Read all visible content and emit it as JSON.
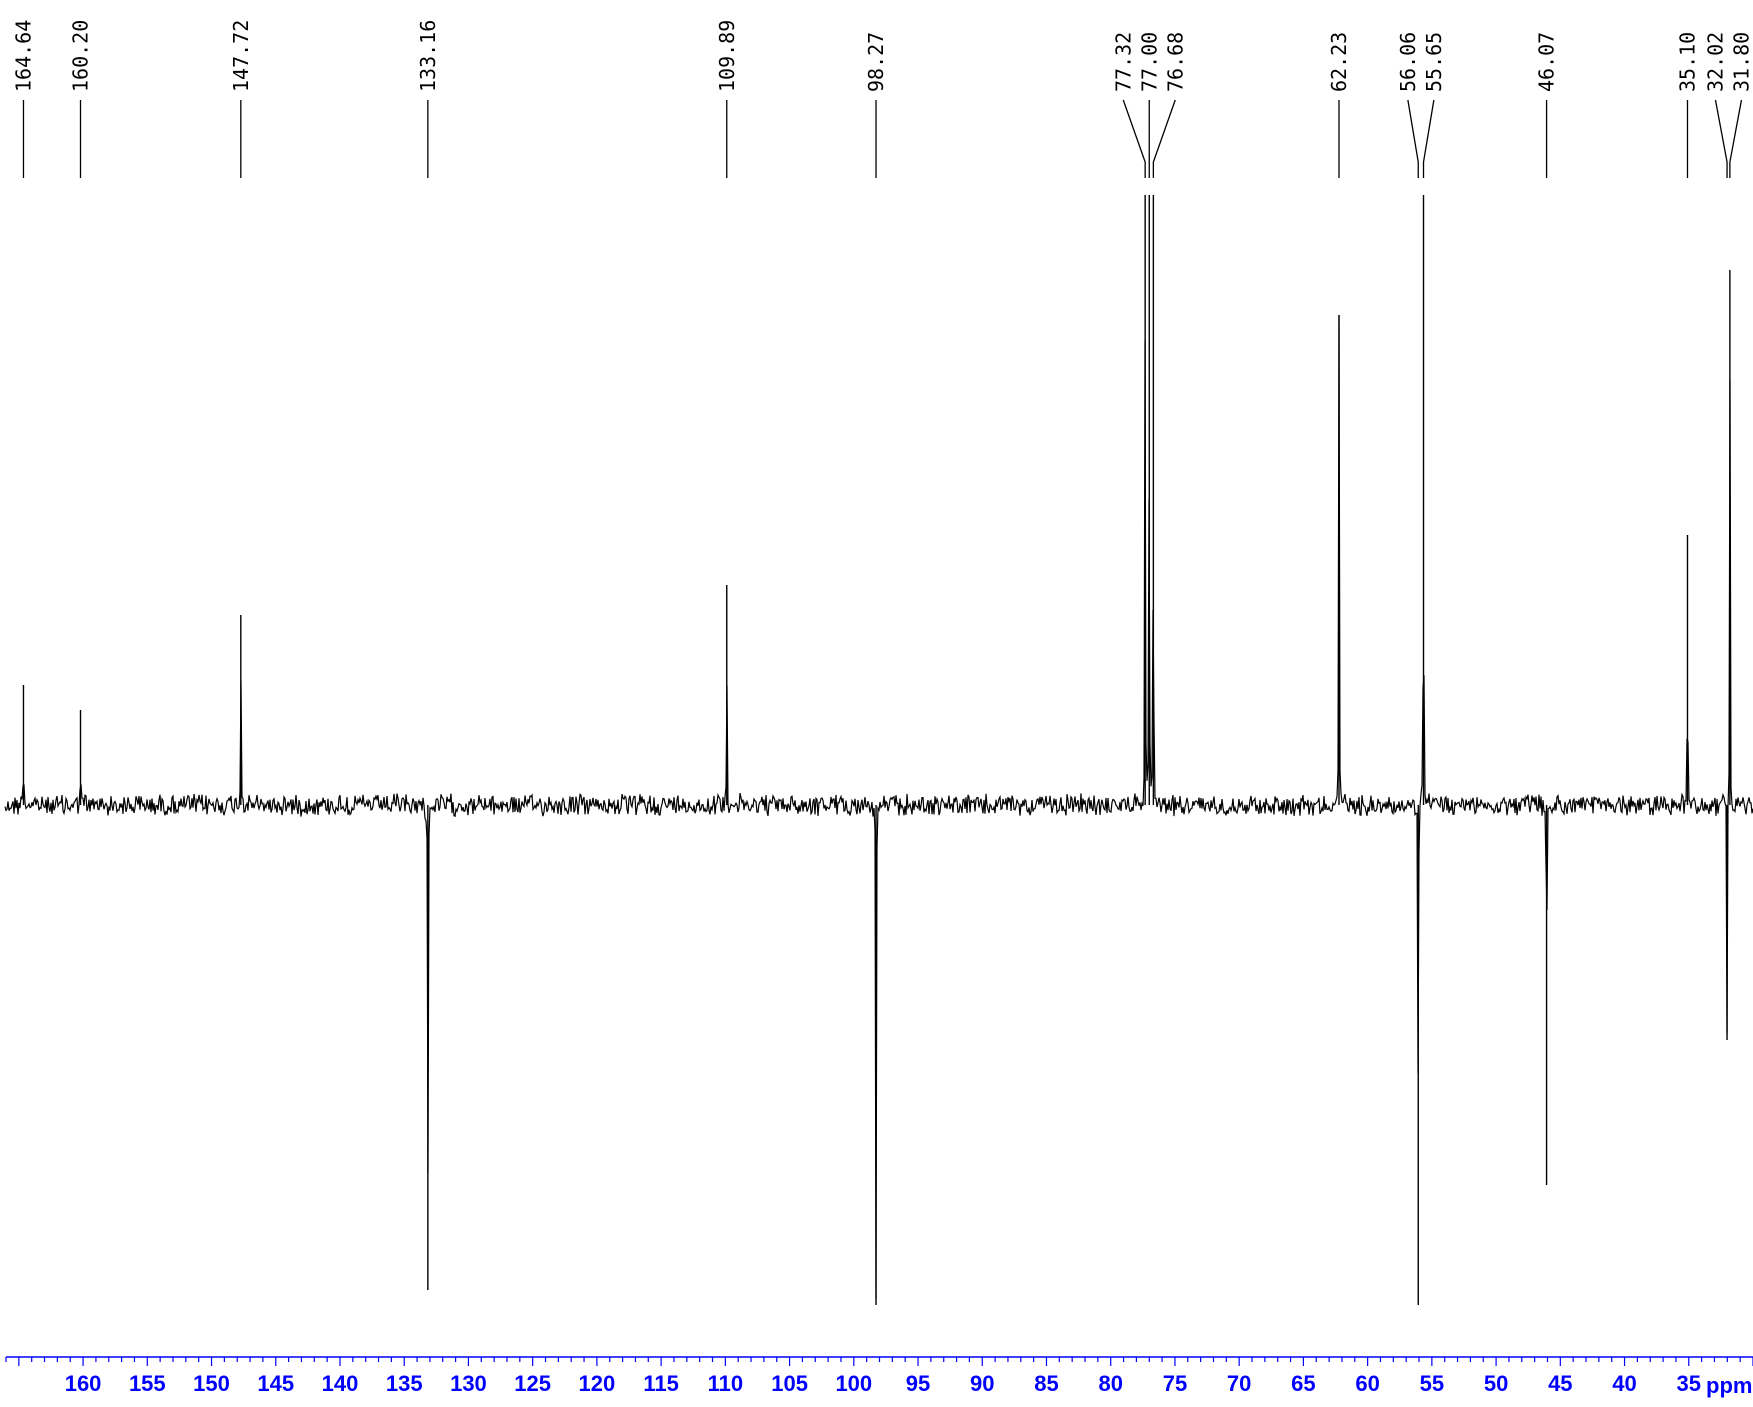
{
  "chart_data": {
    "type": "line",
    "title": "",
    "xlabel": "ppm",
    "ylabel": "",
    "x_reversed": true,
    "xlim": [
      166.0,
      30.0
    ],
    "x_ticks": [
      160,
      155,
      150,
      145,
      140,
      135,
      130,
      125,
      120,
      115,
      110,
      105,
      100,
      95,
      90,
      85,
      80,
      75,
      70,
      65,
      60,
      55,
      50,
      45,
      40,
      35
    ],
    "baseline": 0,
    "ylim": [
      -1.0,
      1.25
    ],
    "line_color": "#000000",
    "axis_color": "#0000ff",
    "peaks": [
      {
        "ppm": 164.64,
        "label": "164.64",
        "intensity": 0.24
      },
      {
        "ppm": 160.2,
        "label": "160.20",
        "intensity": 0.19
      },
      {
        "ppm": 147.72,
        "label": "147.72",
        "intensity": 0.38
      },
      {
        "ppm": 133.16,
        "label": "133.16",
        "intensity": -0.97
      },
      {
        "ppm": 109.89,
        "label": "109.89",
        "intensity": 0.44
      },
      {
        "ppm": 98.27,
        "label": "98.27",
        "intensity": -1.0
      },
      {
        "ppm": 77.32,
        "label": "77.32",
        "intensity": 1.22
      },
      {
        "ppm": 77.0,
        "label": "77.00",
        "intensity": 1.22
      },
      {
        "ppm": 76.68,
        "label": "76.68",
        "intensity": 1.22
      },
      {
        "ppm": 62.23,
        "label": "62.23",
        "intensity": 0.98
      },
      {
        "ppm": 56.06,
        "label": "56.06",
        "intensity": -1.0
      },
      {
        "ppm": 55.65,
        "label": "55.65",
        "intensity": 1.22
      },
      {
        "ppm": 46.07,
        "label": "46.07",
        "intensity": -0.76
      },
      {
        "ppm": 35.1,
        "label": "35.10",
        "intensity": 0.54
      },
      {
        "ppm": 32.02,
        "label": "32.02",
        "intensity": -0.47
      },
      {
        "ppm": 31.8,
        "label": "31.80",
        "intensity": 1.07
      }
    ]
  }
}
